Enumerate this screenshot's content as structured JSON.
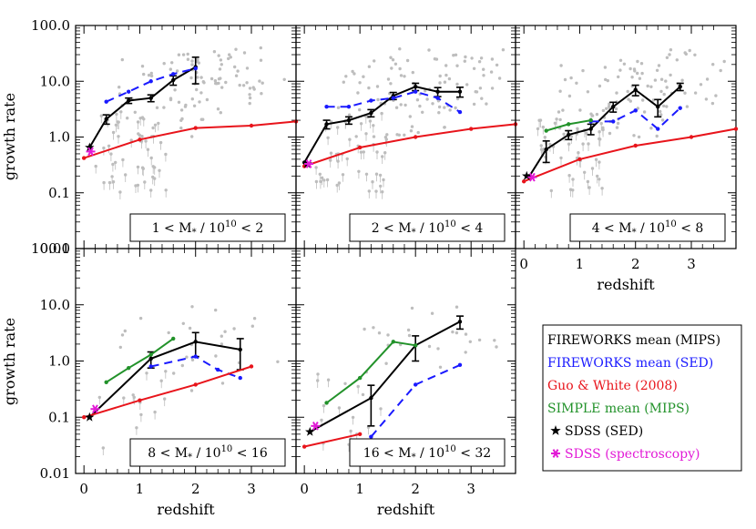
{
  "axis": {
    "ylabel": "growth rate",
    "xlabel": "redshift",
    "yticks": [
      "0.01",
      "0.1",
      "1.0",
      "10.0",
      "100.0"
    ],
    "xticks": [
      "0",
      "1",
      "2",
      "3"
    ]
  },
  "legend": [
    {
      "label": "FIREWORKS mean (MIPS)",
      "color": "#000000"
    },
    {
      "label": "FIREWORKS mean (SED)",
      "color": "#1a1aff"
    },
    {
      "label": "Guo & White (2008)",
      "color": "#e8141b"
    },
    {
      "label": "SIMPLE mean (MIPS)",
      "color": "#22922a"
    },
    {
      "label": "SDSS (SED)",
      "color": "#000000",
      "marker": "star"
    },
    {
      "label": "SDSS (spectroscopy)",
      "color": "#e21ad6",
      "marker": "asterisk"
    }
  ],
  "chart_data": [
    {
      "type": "line",
      "panel_label": "1 < M* / 10^10 < 2",
      "label_parts": {
        "a": "1 < M",
        "b": " / 10",
        "exp": "10",
        "c": " < 2"
      },
      "xlim": [
        -0.15,
        3.8
      ],
      "ylim": [
        0.01,
        100
      ],
      "yscale": "log",
      "series": [
        {
          "name": "FIREWORKS mean (MIPS)",
          "x": [
            0.1,
            0.4,
            0.8,
            1.2,
            1.6,
            2.0
          ],
          "y": [
            0.65,
            2.1,
            4.5,
            5.0,
            10.5,
            18.0
          ],
          "err": [
            0.0,
            0.4,
            0.5,
            0.7,
            2.0,
            9.0
          ]
        },
        {
          "name": "FIREWORKS mean (SED)",
          "x": [
            0.4,
            0.8,
            1.2,
            1.6,
            2.0
          ],
          "y": [
            4.3,
            6.5,
            10.0,
            13.5,
            17.0
          ]
        },
        {
          "name": "Guo & White (2008)",
          "x": [
            0.0,
            1.0,
            2.0,
            3.0,
            3.8
          ],
          "y": [
            0.42,
            0.9,
            1.45,
            1.6,
            1.9
          ]
        },
        {
          "name": "SDSS (SED)",
          "x": [
            0.1
          ],
          "y": [
            0.65
          ]
        },
        {
          "name": "SDSS (spectroscopy)",
          "x": [
            0.12
          ],
          "y": [
            0.55
          ]
        }
      ]
    },
    {
      "type": "line",
      "panel_label": "2 < M* / 10^10 < 4",
      "label_parts": {
        "a": "2 < M",
        "b": " / 10",
        "exp": "10",
        "c": " < 4"
      },
      "xlim": [
        -0.15,
        3.8
      ],
      "ylim": [
        0.01,
        100
      ],
      "yscale": "log",
      "series": [
        {
          "name": "FIREWORKS mean (MIPS)",
          "x": [
            0.0,
            0.4,
            0.8,
            1.2,
            1.6,
            2.0,
            2.4,
            2.8
          ],
          "y": [
            0.35,
            1.7,
            2.0,
            2.7,
            5.5,
            8.0,
            6.5,
            6.5
          ],
          "err": [
            0.0,
            0.3,
            0.3,
            0.4,
            0.8,
            1.2,
            1.2,
            1.3
          ]
        },
        {
          "name": "FIREWORKS mean (SED)",
          "x": [
            0.4,
            0.8,
            1.2,
            1.6,
            2.0,
            2.4,
            2.8
          ],
          "y": [
            3.5,
            3.5,
            4.5,
            5.0,
            6.5,
            5.0,
            2.8
          ]
        },
        {
          "name": "Guo & White (2008)",
          "x": [
            0.0,
            1.0,
            2.0,
            3.0,
            3.8
          ],
          "y": [
            0.3,
            0.65,
            1.0,
            1.4,
            1.7
          ]
        },
        {
          "name": "SDSS (SED)",
          "x": [
            0.05
          ],
          "y": [
            0.33
          ]
        },
        {
          "name": "SDSS (spectroscopy)",
          "x": [
            0.08
          ],
          "y": [
            0.33
          ]
        }
      ]
    },
    {
      "type": "line",
      "panel_label": "4 < M* / 10^10 < 8",
      "label_parts": {
        "a": "4 < M",
        "b": " / 10",
        "exp": "10",
        "c": " < 8"
      },
      "xlim": [
        -0.15,
        3.8
      ],
      "ylim": [
        0.01,
        100
      ],
      "yscale": "log",
      "series": [
        {
          "name": "FIREWORKS mean (MIPS)",
          "x": [
            0.1,
            0.4,
            0.8,
            1.2,
            1.6,
            2.0,
            2.4,
            2.8
          ],
          "y": [
            0.2,
            0.6,
            1.1,
            1.4,
            3.5,
            7.0,
            3.5,
            8.0
          ],
          "err": [
            0.0,
            0.25,
            0.2,
            0.3,
            0.7,
            1.5,
            1.2,
            1.2
          ]
        },
        {
          "name": "FIREWORKS mean (SED)",
          "x": [
            1.2,
            1.6,
            2.0,
            2.4,
            2.8
          ],
          "y": [
            1.9,
            1.9,
            3.0,
            1.4,
            3.3
          ]
        },
        {
          "name": "Guo & White (2008)",
          "x": [
            0.0,
            1.0,
            2.0,
            3.0,
            3.8
          ],
          "y": [
            0.16,
            0.4,
            0.7,
            1.0,
            1.4
          ]
        },
        {
          "name": "SIMPLE mean (MIPS)",
          "x": [
            0.4,
            0.8,
            1.2
          ],
          "y": [
            1.3,
            1.7,
            2.0
          ]
        },
        {
          "name": "SDSS (SED)",
          "x": [
            0.05
          ],
          "y": [
            0.2
          ]
        },
        {
          "name": "SDSS (spectroscopy)",
          "x": [
            0.15
          ],
          "y": [
            0.19
          ]
        }
      ]
    },
    {
      "type": "line",
      "panel_label": "8 < M* / 10^10 < 16",
      "label_parts": {
        "a": "8 < M",
        "b": " / 10",
        "exp": "10",
        "c": " < 16"
      },
      "xlim": [
        -0.15,
        3.8
      ],
      "ylim": [
        0.01,
        100
      ],
      "yscale": "log",
      "series": [
        {
          "name": "FIREWORKS mean (MIPS)",
          "x": [
            0.1,
            1.2,
            2.0,
            2.8
          ],
          "y": [
            0.1,
            1.1,
            2.2,
            1.6
          ],
          "err": [
            0.0,
            0.35,
            1.0,
            0.9
          ]
        },
        {
          "name": "FIREWORKS mean (SED)",
          "x": [
            1.2,
            2.0,
            2.4,
            2.8
          ],
          "y": [
            0.8,
            1.2,
            0.7,
            0.5
          ]
        },
        {
          "name": "Guo & White (2008)",
          "x": [
            0.0,
            1.0,
            2.0,
            3.0
          ],
          "y": [
            0.1,
            0.2,
            0.38,
            0.8
          ]
        },
        {
          "name": "SIMPLE mean (MIPS)",
          "x": [
            0.4,
            0.8,
            1.2,
            1.6
          ],
          "y": [
            0.42,
            0.75,
            1.3,
            2.5
          ]
        },
        {
          "name": "SDSS (SED)",
          "x": [
            0.1
          ],
          "y": [
            0.1
          ]
        },
        {
          "name": "SDSS (spectroscopy)",
          "x": [
            0.2
          ],
          "y": [
            0.14
          ]
        }
      ]
    },
    {
      "type": "line",
      "panel_label": "16 < M* / 10^10 < 32",
      "label_parts": {
        "a": "16 < M",
        "b": " / 10",
        "exp": "10",
        "c": " < 32"
      },
      "xlim": [
        -0.15,
        3.8
      ],
      "ylim": [
        0.01,
        100
      ],
      "yscale": "log",
      "series": [
        {
          "name": "FIREWORKS mean (MIPS)",
          "x": [
            0.1,
            1.2,
            2.0,
            2.8
          ],
          "y": [
            0.055,
            0.22,
            1.9,
            5.0
          ],
          "err": [
            0.0,
            0.15,
            0.9,
            1.3
          ]
        },
        {
          "name": "FIREWORKS mean (SED)",
          "x": [
            1.2,
            2.0,
            2.8
          ],
          "y": [
            0.045,
            0.38,
            0.85
          ]
        },
        {
          "name": "Guo & White (2008)",
          "x": [
            0.0,
            1.0
          ],
          "y": [
            0.03,
            0.05
          ]
        },
        {
          "name": "SIMPLE mean (MIPS)",
          "x": [
            0.4,
            1.0,
            1.6,
            2.0
          ],
          "y": [
            0.18,
            0.5,
            2.2,
            1.9
          ]
        },
        {
          "name": "SDSS (SED)",
          "x": [
            0.1
          ],
          "y": [
            0.055
          ]
        },
        {
          "name": "SDSS (spectroscopy)",
          "x": [
            0.2
          ],
          "y": [
            0.07
          ]
        }
      ]
    }
  ]
}
